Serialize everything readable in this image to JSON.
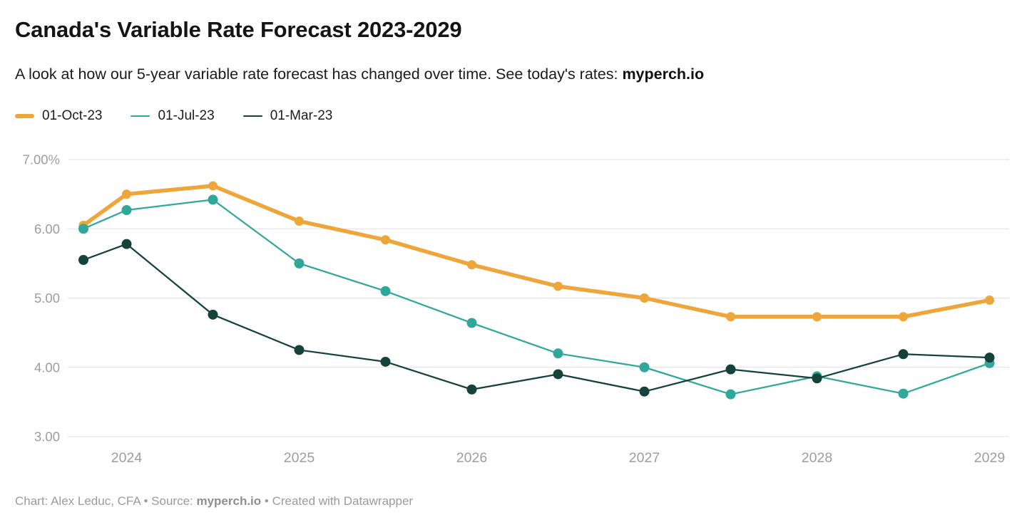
{
  "header": {
    "title": "Canada's Variable Rate Forecast 2023-2029",
    "subtitle_prefix": "A look at how our 5-year variable rate forecast has changed over time. See today's rates: ",
    "subtitle_link": "myperch.io"
  },
  "chart_data": {
    "type": "line",
    "title": "Canada's Variable Rate Forecast 2023-2029",
    "x_unit": "decimal_year",
    "x": [
      2023.75,
      2024,
      2024.5,
      2025,
      2025.5,
      2026,
      2026.5,
      2027,
      2027.5,
      2028,
      2028.5,
      2029
    ],
    "series": [
      {
        "name": "01-Oct-23",
        "color": "#EEA63B",
        "line_width": 5.5,
        "marker_radius": 6.5,
        "values": [
          6.05,
          6.5,
          6.62,
          6.11,
          5.84,
          5.48,
          5.17,
          5.0,
          4.73,
          4.73,
          4.73,
          4.97
        ]
      },
      {
        "name": "01-Jul-23",
        "color": "#2FA89B",
        "line_width": 2.25,
        "marker_radius": 7,
        "values": [
          6.0,
          6.27,
          6.42,
          5.5,
          5.1,
          4.64,
          4.2,
          4.0,
          3.61,
          3.87,
          3.62,
          4.06
        ]
      },
      {
        "name": "01-Mar-23",
        "color": "#15423A",
        "line_width": 2.25,
        "marker_radius": 7,
        "values": [
          5.55,
          5.78,
          4.76,
          4.25,
          4.08,
          3.68,
          3.9,
          3.65,
          3.97,
          3.84,
          4.19,
          4.14
        ]
      }
    ],
    "y_axis": {
      "range": [
        3,
        7
      ],
      "ticks": [
        {
          "value": 7,
          "label": "7.00%"
        },
        {
          "value": 6,
          "label": "6.00"
        },
        {
          "value": 5,
          "label": "5.00"
        },
        {
          "value": 4,
          "label": "4.00"
        },
        {
          "value": 3,
          "label": "3.00"
        }
      ]
    },
    "x_axis": {
      "ticks": [
        {
          "value": 2024,
          "label": "2024"
        },
        {
          "value": 2025,
          "label": "2025"
        },
        {
          "value": 2026,
          "label": "2026"
        },
        {
          "value": 2027,
          "label": "2027"
        },
        {
          "value": 2028,
          "label": "2028"
        },
        {
          "value": 2029,
          "label": "2029"
        }
      ]
    },
    "grid": true,
    "legend_position": "top-left"
  },
  "footer": {
    "prefix": "Chart: Alex Leduc, CFA • Source: ",
    "source_link": "myperch.io",
    "suffix": " • Created with Datawrapper"
  },
  "colors": {
    "grid": "#E0E0E0",
    "axis_text": "#9D9D9D",
    "title_text": "#141414",
    "body_text": "#1A1A1A",
    "footer_text": "#9B9B9B"
  }
}
